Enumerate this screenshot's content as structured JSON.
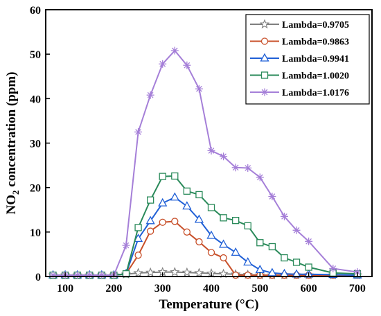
{
  "chart_data": {
    "type": "line",
    "xlabel": "Temperature (°C)",
    "ylabel_parts": [
      "NO",
      "2",
      " concentration (ppm)"
    ],
    "xlim": [
      60,
      730
    ],
    "ylim": [
      0,
      60
    ],
    "xticks": [
      100,
      200,
      300,
      400,
      500,
      600,
      700
    ],
    "yticks": [
      0,
      10,
      20,
      30,
      40,
      50,
      60
    ],
    "legend_position": "top-right",
    "grid": false,
    "x": [
      75,
      100,
      125,
      150,
      175,
      200,
      225,
      250,
      275,
      300,
      325,
      350,
      375,
      400,
      425,
      450,
      475,
      500,
      525,
      550,
      575,
      600,
      650,
      700
    ],
    "series": [
      {
        "name": "Lambda=0.9705",
        "color": "#7f7f7f",
        "marker": "star",
        "values": [
          0.3,
          0.3,
          0.3,
          0.3,
          0.3,
          0.3,
          0.5,
          0.8,
          0.9,
          1.0,
          1.0,
          0.9,
          0.8,
          0.7,
          0.6,
          0.5,
          0.4,
          0.3,
          0.3,
          0.3,
          0.3,
          0.3,
          0.3,
          0.3
        ]
      },
      {
        "name": "Lambda=0.9863",
        "color": "#c8502a",
        "marker": "circle",
        "values": [
          0.3,
          0.3,
          0.3,
          0.3,
          0.3,
          0.3,
          0.6,
          4.8,
          10.2,
          12.2,
          12.4,
          10.0,
          7.8,
          5.4,
          4.2,
          0.3,
          0.3,
          0.3,
          0.3,
          0.3,
          0.3,
          0.3,
          0.3,
          0.3
        ]
      },
      {
        "name": "Lambda=0.9941",
        "color": "#1f5fd6",
        "marker": "triangle",
        "values": [
          0.3,
          0.3,
          0.3,
          0.3,
          0.3,
          0.3,
          0.6,
          8.5,
          12.5,
          16.5,
          17.8,
          15.8,
          12.8,
          9.2,
          7.2,
          5.4,
          3.2,
          1.5,
          0.8,
          0.6,
          0.5,
          0.5,
          0.4,
          0.3
        ]
      },
      {
        "name": "Lambda=1.0020",
        "color": "#2a8a5a",
        "marker": "square",
        "values": [
          0.3,
          0.3,
          0.3,
          0.3,
          0.3,
          0.3,
          0.6,
          11.0,
          17.2,
          22.5,
          22.6,
          19.2,
          18.4,
          15.5,
          13.2,
          12.6,
          11.4,
          7.6,
          6.7,
          4.2,
          3.2,
          2.1,
          0.8,
          0.6
        ]
      },
      {
        "name": "Lambda=1.0176",
        "color": "#a57fd8",
        "marker": "asterisk",
        "values": [
          0.3,
          0.3,
          0.3,
          0.3,
          0.3,
          0.3,
          7.0,
          32.5,
          40.8,
          47.8,
          50.8,
          47.5,
          42.2,
          28.3,
          27.0,
          24.5,
          24.4,
          22.3,
          18.0,
          13.5,
          10.4,
          7.9,
          1.8,
          1.0
        ]
      }
    ]
  }
}
